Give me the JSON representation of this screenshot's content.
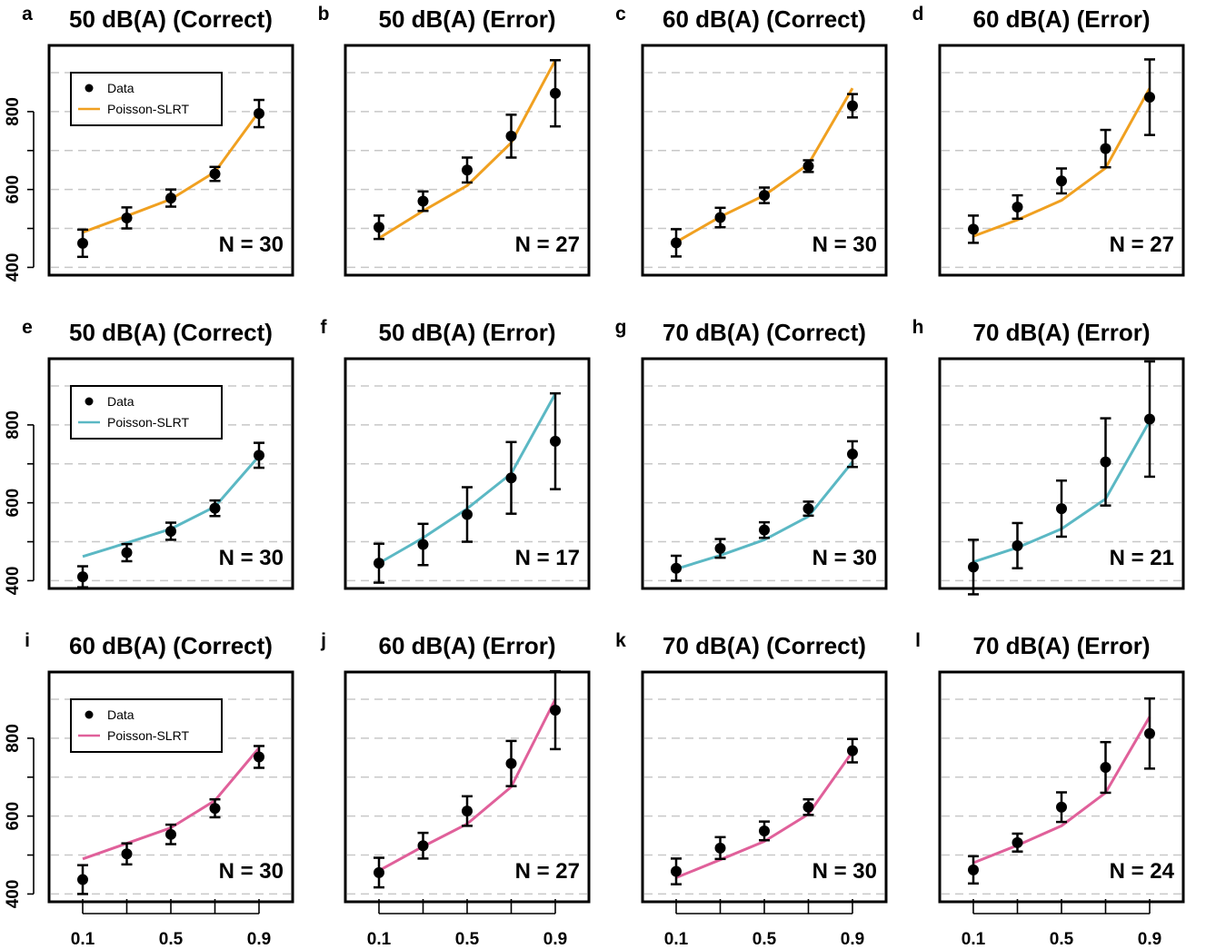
{
  "chart_data": {
    "type": "line",
    "x_quantiles": [
      0.1,
      0.3,
      0.5,
      0.7,
      0.9
    ],
    "x_tick_labels": [
      "0.1",
      "0.5",
      "0.9"
    ],
    "y_tick_labels": [
      "400",
      "600",
      "800"
    ],
    "ylim": [
      380,
      970
    ],
    "grid_y": [
      400,
      500,
      600,
      700,
      800,
      900
    ],
    "legend": {
      "data_label": "Data",
      "model_label": "Poisson-SLRT"
    },
    "series_colors": {
      "orange": "#F0A020",
      "teal": "#5BB8C4",
      "pink": "#E0609A"
    },
    "panels": [
      {
        "letter": "a",
        "title": "50 dB(A) (Correct)",
        "n_label": "N = 30",
        "color": "orange",
        "legend": true,
        "data": [
          462,
          527,
          578,
          640,
          795
        ],
        "err": [
          35,
          27,
          22,
          18,
          35
        ],
        "fit": [
          490,
          532,
          575,
          645,
          800
        ]
      },
      {
        "letter": "b",
        "title": "50 dB(A) (Error)",
        "n_label": "N = 27",
        "color": "orange",
        "legend": false,
        "data": [
          503,
          570,
          650,
          737,
          847
        ],
        "err": [
          30,
          25,
          32,
          55,
          85
        ],
        "fit": [
          475,
          545,
          610,
          720,
          932
        ]
      },
      {
        "letter": "c",
        "title": "60 dB(A) (Correct)",
        "n_label": "N = 30",
        "color": "orange",
        "legend": false,
        "data": [
          463,
          528,
          585,
          660,
          815
        ],
        "err": [
          35,
          25,
          20,
          15,
          30
        ],
        "fit": [
          465,
          530,
          585,
          665,
          860
        ]
      },
      {
        "letter": "d",
        "title": "60 dB(A) (Error)",
        "n_label": "N = 27",
        "color": "orange",
        "legend": false,
        "data": [
          498,
          555,
          622,
          705,
          837
        ],
        "err": [
          35,
          30,
          32,
          48,
          97
        ],
        "fit": [
          480,
          522,
          572,
          655,
          860
        ]
      },
      {
        "letter": "e",
        "title": "50 dB(A) (Correct)",
        "n_label": "N = 30",
        "color": "teal",
        "legend": true,
        "data": [
          410,
          472,
          527,
          586,
          722
        ],
        "err": [
          27,
          22,
          22,
          20,
          32
        ],
        "fit": [
          462,
          497,
          533,
          590,
          720
        ]
      },
      {
        "letter": "f",
        "title": "50 dB(A) (Error)",
        "n_label": "N = 17",
        "color": "teal",
        "legend": false,
        "data": [
          445,
          493,
          570,
          664,
          758
        ],
        "err": [
          50,
          53,
          70,
          92,
          123
        ],
        "fit": [
          445,
          510,
          585,
          675,
          880
        ]
      },
      {
        "letter": "g",
        "title": "70 dB(A) (Correct)",
        "n_label": "N = 30",
        "color": "teal",
        "legend": false,
        "data": [
          432,
          483,
          530,
          585,
          725
        ],
        "err": [
          32,
          24,
          20,
          18,
          33
        ],
        "fit": [
          430,
          465,
          505,
          565,
          705
        ]
      },
      {
        "letter": "h",
        "title": "70 dB(A) (Error)",
        "n_label": "N = 21",
        "color": "teal",
        "legend": false,
        "data": [
          435,
          490,
          585,
          705,
          815
        ],
        "err": [
          70,
          58,
          72,
          112,
          148
        ],
        "fit": [
          448,
          485,
          533,
          610,
          810
        ]
      },
      {
        "letter": "i",
        "title": "60 dB(A) (Correct)",
        "n_label": "N = 30",
        "color": "pink",
        "legend": true,
        "data": [
          437,
          503,
          553,
          620,
          752
        ],
        "err": [
          37,
          27,
          25,
          23,
          28
        ],
        "fit": [
          490,
          530,
          570,
          640,
          775
        ]
      },
      {
        "letter": "j",
        "title": "60 dB(A) (Error)",
        "n_label": "N = 27",
        "color": "pink",
        "legend": false,
        "data": [
          455,
          524,
          613,
          735,
          872
        ],
        "err": [
          38,
          33,
          38,
          58,
          100
        ],
        "fit": [
          460,
          522,
          580,
          675,
          900
        ]
      },
      {
        "letter": "k",
        "title": "70 dB(A) (Correct)",
        "n_label": "N = 30",
        "color": "pink",
        "legend": false,
        "data": [
          458,
          518,
          562,
          623,
          768
        ],
        "err": [
          33,
          28,
          24,
          20,
          30
        ],
        "fit": [
          442,
          488,
          535,
          605,
          765
        ]
      },
      {
        "letter": "l",
        "title": "70 dB(A) (Error)",
        "n_label": "N = 24",
        "color": "pink",
        "legend": false,
        "data": [
          462,
          532,
          623,
          725,
          812
        ],
        "err": [
          35,
          23,
          38,
          65,
          90
        ],
        "fit": [
          480,
          525,
          575,
          660,
          855
        ]
      }
    ]
  }
}
